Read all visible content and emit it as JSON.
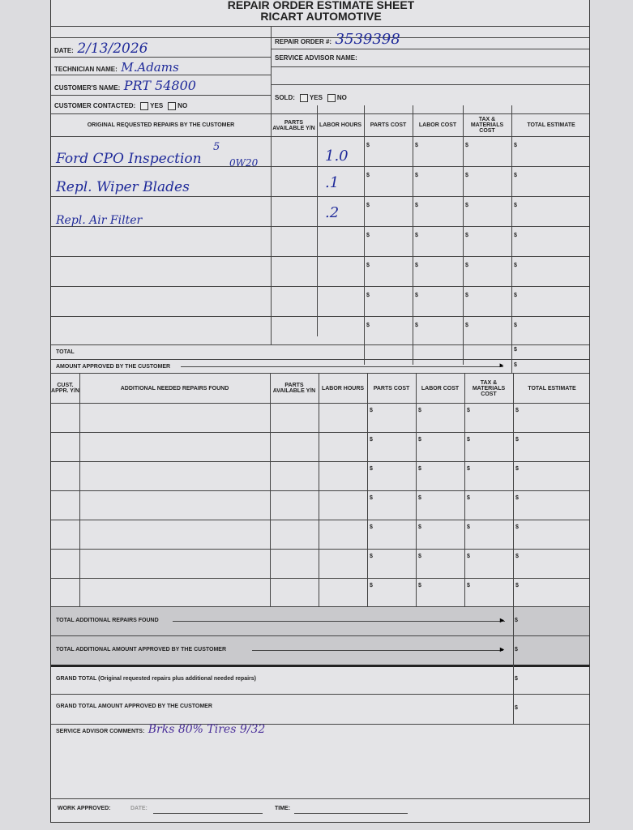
{
  "header": {
    "title": "REPAIR ORDER ESTIMATE SHEET",
    "company": "RICART AUTOMOTIVE"
  },
  "info": {
    "date_label": "DATE:",
    "date_value": "2/13/2026",
    "technician_label": "TECHNICIAN NAME:",
    "technician_value": "M.Adams",
    "customer_label": "CUSTOMER'S NAME:",
    "customer_value": "PRT 54800",
    "contacted_label": "CUSTOMER CONTACTED:",
    "yes": "YES",
    "no": "NO",
    "ro_label": "REPAIR ORDER #:",
    "ro_value": "3539398",
    "advisor_label": "SERVICE ADVISOR NAME:",
    "sold_label": "SOLD:"
  },
  "original": {
    "headers": [
      "ORIGINAL REQUESTED REPAIRS BY THE CUSTOMER",
      "PARTS AVAILABLE Y/N",
      "LABOR HOURS",
      "PARTS COST",
      "LABOR COST",
      "TAX & MATERIALS COST",
      "TOTAL ESTIMATE"
    ],
    "rows": [
      {
        "desc": "Ford CPO Inspection",
        "note": "0W20",
        "sup": "5",
        "hours": "1.0"
      },
      {
        "desc": "Repl. Wiper Blades",
        "hours": ".1"
      },
      {
        "desc": "Repl. Air Filter",
        "hours": ".2"
      },
      {},
      {},
      {},
      {}
    ],
    "total_label": "TOTAL",
    "approved_label": "AMOUNT APPROVED BY THE CUSTOMER",
    "currency": "$"
  },
  "additional": {
    "headers": [
      "CUST. APPR. Y/N",
      "ADDITIONAL NEEDED REPAIRS FOUND",
      "PARTS AVAILABLE Y/N",
      "LABOR HOURS",
      "PARTS COST",
      "LABOR COST",
      "TAX & MATERIALS COST",
      "TOTAL ESTIMATE"
    ],
    "row_count": 7,
    "total_label": "TOTAL ADDITIONAL REPAIRS FOUND",
    "approved_label": "TOTAL ADDITIONAL AMOUNT APPROVED BY THE CUSTOMER"
  },
  "grand": {
    "total_label": "GRAND TOTAL (Original requested repairs plus additional needed repairs)",
    "approved_label": "GRAND TOTAL AMOUNT APPROVED BY THE CUSTOMER"
  },
  "comments": {
    "label": "SERVICE ADVISOR COMMENTS:",
    "value": "Brks 80%  Tires 9/32"
  },
  "footer": {
    "work_approved": "WORK APPROVED:",
    "date": "DATE:",
    "time": "TIME:"
  }
}
